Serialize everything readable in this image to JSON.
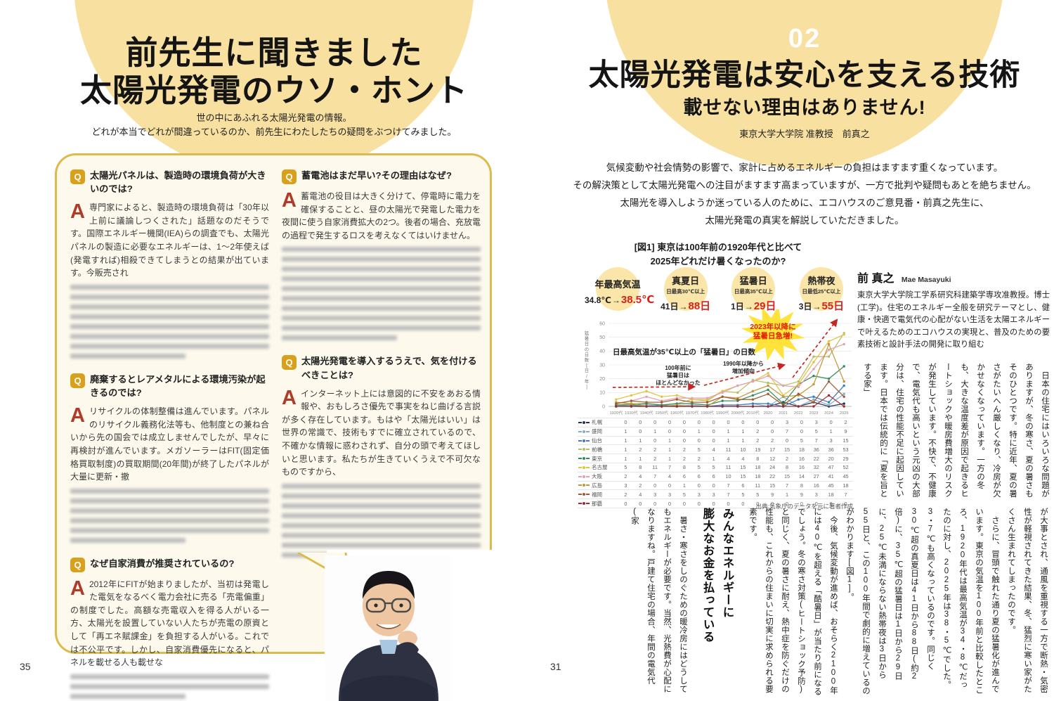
{
  "colors": {
    "accent_yellow": "#F8E0A0",
    "bubble_bg": "#FDFAED",
    "bubble_border": "#DCBA4C",
    "q_icon_bg": "#D8A01B",
    "a_letter_red": "#AF3B2A",
    "stat_value_red": "#D8231B",
    "arrow_red": "#C5261F",
    "burst_yellow": "#FFE33A"
  },
  "left_page": {
    "page_number": "35",
    "title_lines": [
      "前先生に聞きました",
      "太陽光発電のウソ・ホント"
    ],
    "subtitle_lines": [
      "世の中にあふれる太陽光発電の情報。",
      "どれが本当でどれが間違っているのか、前先生にわたしたちの疑問をぶつけてみました。"
    ],
    "q_icon_label": "Q",
    "a_icon_label": "A",
    "qa_columns": [
      [
        {
          "q": "太陽光パネルは、製造時の環境負荷が大きいのでは?",
          "a": "専門家によると、製造時の環境負荷は「30年以上前に議論しつくされた」話題なのだそうです。国際エネルギー機関(IEA)らの調査でも、太陽光パネルの製造に必要なエネルギーは、1〜2年使えば(発電すれば)相殺できてしまうとの結果が出ています。今販売され",
          "blurred_lines": 8
        },
        {
          "q": "廃棄するとレアメタルによる環境汚染が起きるのでは?",
          "a": "リサイクルの体制整備は進んでいます。パネルのリサイクル義務化法等も、他制度との兼ね合いから先の国会では成立しませんでしたが、早々に再検討が進んでいます。メガソーラーはFIT(固定価格買取制度)の買取期間(20年間)が終了したパネルが大量に更新・撤",
          "blurred_lines": 6
        },
        {
          "q": "なぜ自家消費が推奨されているの?",
          "a": "2012年にFITが始まりましたが、当初は発電した電気をなるべく電力会社に売る「売電偏重」の制度でした。高額な売電収入を得る人がいる一方、太陽光を設置していない人たちが売電の原資として「再エネ賦課金」を負担する人がいる。これでは不公平です。しかし、自家消費優先になると、パネルを載せる人も載せな",
          "blurred_lines": 3
        }
      ],
      [
        {
          "q": "蓄電池はまだ早い?その理由はなぜ?",
          "a": "蓄電池の役目は大きく分けて、停電時に電力を確保することと、昼の太陽光で発電した電力を夜間に使う自家消費拡大の2つ。後者の場合、充放電の過程で発生するロスを考えなくてはいけません。",
          "blurred_lines": 10
        },
        {
          "q": "太陽光発電を導入するうえで、気を付けるべきことは?",
          "a": "インターネット上には意図的に不安をあおる情報や、おもしろさ優先で事実をねじ曲げる言説が多く存在しています。もはや「太陽光はいい」は世界の常識で、技術もすでに確立されているので、不確かな情報に惑わされず、自分の頭で考えてほしいと思います。私たちが生きていくうえで不可欠なものですから、",
          "blurred_lines": 8
        }
      ]
    ]
  },
  "right_page": {
    "page_number": "31",
    "chapter_number": "02",
    "title": "太陽光発電は安心を支える技術",
    "subtitle": "載せない理由はありません!",
    "author_line": "東京大学大学院 准教授　前真之",
    "intro_lines": [
      "気候変動や社会情勢の影響で、家計に占めるエネルギーの負担はますます重くなっています。",
      "その解決策として太陽光発電への注目がますます高まっていますが、一方で批判や疑問もあとを絶ちません。",
      "太陽光を導入しようか迷っている人のために、エコハウスのご意見番・前真之先生に、",
      "太陽光発電の真実を解説していただきました。"
    ],
    "profile": {
      "name": "前 真之",
      "name_en": "Mae Masayuki",
      "bio": "東京大学大学院工学系研究科建築学専攻准教授。博士(工学)。住宅のエネルギー全般を研究テーマとし、健康・快適で電気代の心配がない生活を太陽エネルギーで叶えるためのエコハウスの実現と、普及のための要素技術と設計手法の開発に取り組む"
    },
    "article": {
      "band1": "　日本の住宅にはいろいろな問題がありますが、冬の寒さ、夏の暑さもそのひとつです。特に近年、夏の暑さがたいへん厳しくなり、冷房が欠かせなくなっています。一方の冬も、大きな温度差が原因で起きるヒートショックや暖房費増大のリスクが発生しています。不快で、不健康で、電気代も高いという元凶の大部分は、住宅の性能不足に起因しています。日本では伝統的に「夏を旨とする家」",
      "band2_before_paragraphs": [
        "が大事とされ、通風を重視する一方で断熱・気密性が軽視されてきた結果、冬、猛烈に寒い家がたくさん生まれてしまったのです。",
        "　さらに、冒頭で触れた通り夏の猛暑化が進んでいます。東京の気温を100年前と比較したところ、1920年代は最高気温が34・8℃だったのに対し、2025年は38・5℃でした。3・7℃も高くなっているのです。同じく30℃超の真夏日は41日から88日(約2倍)に、35℃超の猛暑日は1日から29日に、25℃未満にならない熱帯夜は3日から55日と、この100年間で劇的に増えているのがわかります[図1]。",
        "　今後、気候変動が進めば、おそらく2100年には40℃を超える「酷暑日」が当たり前になるでしょう。冬の寒さ対策(ヒートショック予防)と同じく、夏の暑さに耐え、熱中症を防ぐだけの性能も、これからの住まいに切実に求められる要素です。"
      ],
      "heading_lines": [
        "みんなエネルギーに",
        "膨大なお金を払っている"
      ],
      "band2_after": "　暑さ・寒さをしのぐための暖冷房にはどうしてもエネルギーが必要です。当然、光熱費が心配になりますね。戸建て住宅の場合、年間の電気代(家"
    }
  },
  "chart_data": {
    "type": "line",
    "caption_lines": [
      "[図1] 東京は100年前の1920年代と比べて",
      "2025年どれだけ暑くなったのか?"
    ],
    "stats": [
      {
        "label": "年最高気温",
        "note": "",
        "from": "34.8℃",
        "to": "38.5℃"
      },
      {
        "label": "真夏日",
        "note": "日最高30℃以上",
        "from": "41日",
        "to": "88日"
      },
      {
        "label": "猛暑日",
        "note": "日最高35℃以上",
        "from": "1日",
        "to": "29日"
      },
      {
        "label": "熱帯夜",
        "note": "日最低25℃以上",
        "from": "3日",
        "to": "55日"
      }
    ],
    "inner_title": "日最高気温が35℃以上の「猛暑日」の日数",
    "ylabel": "猛暑日の日数[日/年]",
    "ylim": [
      0,
      60
    ],
    "yticks": [
      0,
      10,
      20,
      30,
      40,
      50,
      60
    ],
    "categories": [
      "1920代",
      "1930代",
      "1940代",
      "1950代",
      "1960代",
      "1970代",
      "1980代",
      "1990代",
      "2000代",
      "2010代",
      "2020",
      "2021",
      "2022",
      "2023",
      "2024",
      "2025"
    ],
    "series": [
      {
        "name": "札幌",
        "color": "#25324e",
        "values": [
          0,
          0,
          0,
          0,
          0,
          0,
          0,
          0,
          0,
          0,
          0,
          3,
          0,
          3,
          0,
          2
        ]
      },
      {
        "name": "盛岡",
        "color": "#85aecb",
        "values": [
          1,
          0,
          1,
          0,
          0,
          1,
          0,
          1,
          1,
          2,
          0,
          7,
          0,
          5,
          1,
          9
        ]
      },
      {
        "name": "仙台",
        "color": "#3f7cb8",
        "values": [
          1,
          1,
          0,
          1,
          0,
          0,
          0,
          1,
          1,
          2,
          2,
          0,
          5,
          7,
          3,
          15
        ]
      },
      {
        "name": "前橋",
        "color": "#b9bd62",
        "values": [
          1,
          2,
          2,
          1,
          2,
          5,
          4,
          11,
          10,
          19,
          17,
          15,
          18,
          36,
          36,
          53
        ]
      },
      {
        "name": "東京",
        "color": "#33895c",
        "values": [
          1,
          1,
          2,
          1,
          2,
          2,
          1,
          4,
          4,
          8,
          12,
          2,
          16,
          22,
          20,
          29
        ]
      },
      {
        "name": "名古屋",
        "color": "#e2c23e",
        "values": [
          5,
          8,
          11,
          7,
          8,
          5,
          5,
          11,
          15,
          18,
          24,
          8,
          16,
          32,
          47,
          52
        ]
      },
      {
        "name": "大阪",
        "color": "#e2a0b3",
        "values": [
          2,
          4,
          7,
          4,
          6,
          6,
          6,
          10,
          15,
          18,
          22,
          15,
          14,
          27,
          41,
          45
        ]
      },
      {
        "name": "広島",
        "color": "#c2973a",
        "values": [
          3,
          2,
          0,
          0,
          1,
          0,
          0,
          7,
          6,
          11,
          15,
          7,
          8,
          16,
          45,
          18
        ]
      },
      {
        "name": "福岡",
        "color": "#a05a2d",
        "values": [
          2,
          4,
          3,
          3,
          5,
          3,
          3,
          7,
          5,
          5,
          9,
          1,
          9,
          3,
          18,
          7
        ]
      },
      {
        "name": "那覇",
        "color": "#a02a35",
        "values": [
          0,
          0,
          0,
          0,
          0,
          0,
          0,
          0,
          0,
          0,
          0,
          0,
          0,
          0,
          8,
          0
        ]
      }
    ],
    "annotations": {
      "ann1_lines": [
        "100年前に",
        "猛暑日は",
        "ほとんどなかった"
      ],
      "ann2_lines": [
        "1990年以降から",
        "増加傾向"
      ],
      "burst_lines": [
        "2023年以降に",
        "猛暑日急増!"
      ]
    },
    "source": "出典:気象庁のデータを元に著者作成"
  }
}
